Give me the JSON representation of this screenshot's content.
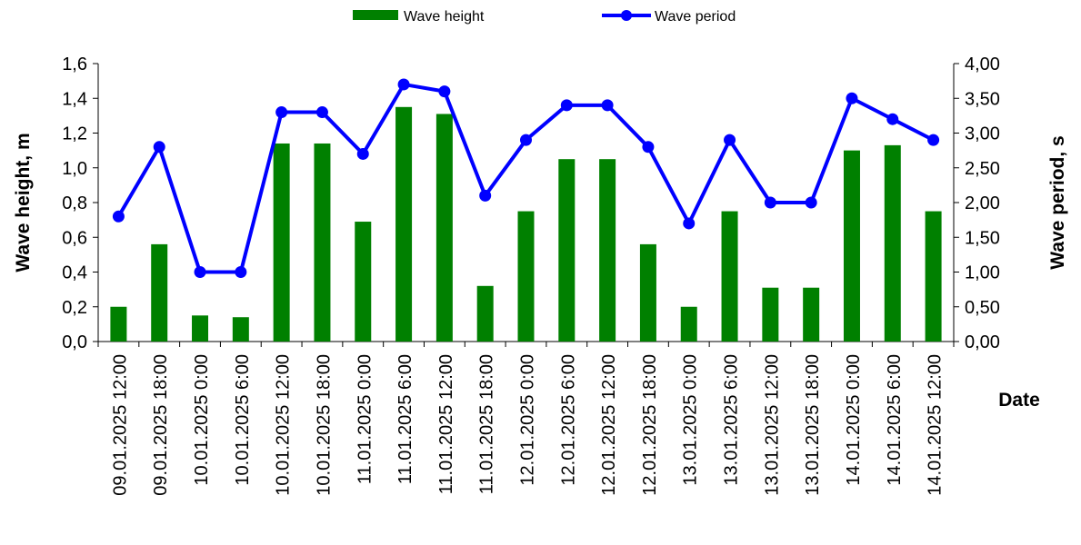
{
  "chart_data": {
    "type": "bar",
    "categories": [
      "09.01.2025 12:00",
      "09.01.2025 18:00",
      "10.01.2025 0:00",
      "10.01.2025 6:00",
      "10.01.2025 12:00",
      "10.01.2025 18:00",
      "11.01.2025 0:00",
      "11.01.2025 6:00",
      "11.01.2025 12:00",
      "11.01.2025 18:00",
      "12.01.2025 0:00",
      "12.01.2025 6:00",
      "12.01.2025 12:00",
      "12.01.2025 18:00",
      "13.01.2025 0:00",
      "13.01.2025 6:00",
      "13.01.2025 12:00",
      "13.01.2025 18:00",
      "14.01.2025 0:00",
      "14.01.2025 6:00",
      "14.01.2025 12:00"
    ],
    "series": [
      {
        "name": "Wave height",
        "type": "bar",
        "axis": "left",
        "color": "#008000",
        "values": [
          0.2,
          0.56,
          0.15,
          0.14,
          1.14,
          1.14,
          0.69,
          1.35,
          1.31,
          0.32,
          0.75,
          1.05,
          1.05,
          0.56,
          0.2,
          0.75,
          0.31,
          0.31,
          1.1,
          1.13,
          0.75
        ]
      },
      {
        "name": "Wave period",
        "type": "line",
        "axis": "right",
        "color": "#0000ff",
        "values": [
          1.8,
          2.8,
          1.0,
          1.0,
          3.3,
          3.3,
          2.7,
          3.7,
          3.6,
          2.1,
          2.9,
          3.4,
          3.4,
          2.8,
          1.7,
          2.9,
          2.0,
          2.0,
          3.5,
          3.2,
          2.9
        ]
      }
    ],
    "xlabel": "Date",
    "ylabel": "Wave height, m",
    "y2label": "Wave period, s",
    "ylim": [
      0,
      1.6
    ],
    "y2lim": [
      0,
      4
    ],
    "yticks": [
      "0,0",
      "0,2",
      "0,4",
      "0,6",
      "0,8",
      "1,0",
      "1,2",
      "1,4",
      "1,6"
    ],
    "y2ticks": [
      "0,00",
      "0,50",
      "1,00",
      "1,50",
      "2,00",
      "2,50",
      "3,00",
      "3,50",
      "4,00"
    ],
    "grid": false,
    "legend_position": "top-center"
  }
}
